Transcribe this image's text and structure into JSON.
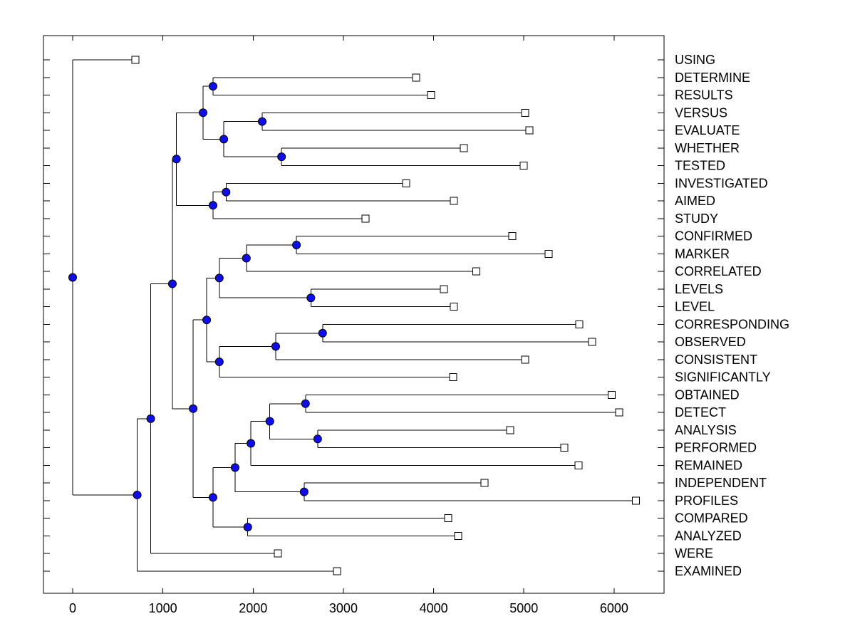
{
  "figure": {
    "background": "#ffffff"
  },
  "chart_data": {
    "type": "dendrogram",
    "orientation": "horizontal",
    "title": "",
    "xlabel": "",
    "ylabel": "",
    "grid": false,
    "x_axis": {
      "ticks": [
        0,
        1000,
        2000,
        3000,
        4000,
        5000,
        6000
      ],
      "tick_labels": [
        "0",
        "1000",
        "2000",
        "3000",
        "4000",
        "5000",
        "6000"
      ],
      "xlim": [
        -320,
        6560
      ]
    },
    "leaves": [
      {
        "label": "USING",
        "distance": 695
      },
      {
        "label": "DETERMINE",
        "distance": 3805
      },
      {
        "label": "RESULTS",
        "distance": 3970
      },
      {
        "label": "VERSUS",
        "distance": 5015
      },
      {
        "label": "EVALUATE",
        "distance": 5060
      },
      {
        "label": "WHETHER",
        "distance": 4335
      },
      {
        "label": "TESTED",
        "distance": 5000
      },
      {
        "label": "INVESTIGATED",
        "distance": 3695
      },
      {
        "label": "AIMED",
        "distance": 4225
      },
      {
        "label": "STUDY",
        "distance": 3245
      },
      {
        "label": "CONFIRMED",
        "distance": 4870
      },
      {
        "label": "MARKER",
        "distance": 5275
      },
      {
        "label": "CORRELATED",
        "distance": 4475
      },
      {
        "label": "LEVELS",
        "distance": 4115
      },
      {
        "label": "LEVEL",
        "distance": 4225
      },
      {
        "label": "CORRESPONDING",
        "distance": 5615
      },
      {
        "label": "OBSERVED",
        "distance": 5755
      },
      {
        "label": "CONSISTENT",
        "distance": 5015
      },
      {
        "label": "SIGNIFICANTLY",
        "distance": 4215
      },
      {
        "label": "OBTAINED",
        "distance": 5975
      },
      {
        "label": "DETECT",
        "distance": 6055
      },
      {
        "label": "ANALYSIS",
        "distance": 4850
      },
      {
        "label": "PERFORMED",
        "distance": 5450
      },
      {
        "label": "REMAINED",
        "distance": 5605
      },
      {
        "label": "INDEPENDENT",
        "distance": 4565
      },
      {
        "label": "PROFILES",
        "distance": 6240
      },
      {
        "label": "COMPARED",
        "distance": 4160
      },
      {
        "label": "ANALYZED",
        "distance": 4270
      },
      {
        "label": "WERE",
        "distance": 2275
      },
      {
        "label": "EXAMINED",
        "distance": 2930
      }
    ],
    "nodes": [
      {
        "id": "n1",
        "distance": 1555,
        "children": [
          "L1",
          "L2"
        ]
      },
      {
        "id": "n2",
        "distance": 2100,
        "children": [
          "L3",
          "L4"
        ]
      },
      {
        "id": "n5",
        "distance": 2315,
        "children": [
          "L5",
          "L6"
        ]
      },
      {
        "id": "n4",
        "distance": 1675,
        "children": [
          "n2",
          "n5"
        ]
      },
      {
        "id": "n3",
        "distance": 1445,
        "children": [
          "n1",
          "n4"
        ]
      },
      {
        "id": "n7",
        "distance": 1700,
        "children": [
          "L7",
          "L8"
        ]
      },
      {
        "id": "n8",
        "distance": 1555,
        "children": [
          "n7",
          "L9"
        ]
      },
      {
        "id": "n6",
        "distance": 1150,
        "children": [
          "n3",
          "n8"
        ]
      },
      {
        "id": "n10",
        "distance": 2480,
        "children": [
          "L10",
          "L11"
        ]
      },
      {
        "id": "n11",
        "distance": 1925,
        "children": [
          "n10",
          "L12"
        ]
      },
      {
        "id": "n12",
        "distance": 2640,
        "children": [
          "L13",
          "L14"
        ]
      },
      {
        "id": "n13",
        "distance": 1625,
        "children": [
          "n11",
          "n12"
        ]
      },
      {
        "id": "n15",
        "distance": 2770,
        "children": [
          "L15",
          "L16"
        ]
      },
      {
        "id": "n15b",
        "distance": 2250,
        "children": [
          "n15",
          "L17"
        ]
      },
      {
        "id": "n16",
        "distance": 1625,
        "children": [
          "n15b",
          "L18"
        ]
      },
      {
        "id": "n17",
        "distance": 1485,
        "children": [
          "n13",
          "n16"
        ]
      },
      {
        "id": "n20",
        "distance": 2580,
        "children": [
          "L19",
          "L20"
        ]
      },
      {
        "id": "n22",
        "distance": 2715,
        "children": [
          "L21",
          "L22"
        ]
      },
      {
        "id": "n21",
        "distance": 2185,
        "children": [
          "n20",
          "n22"
        ]
      },
      {
        "id": "n23",
        "distance": 1975,
        "children": [
          "n21",
          "L23"
        ]
      },
      {
        "id": "n25",
        "distance": 2565,
        "children": [
          "L24",
          "L25"
        ]
      },
      {
        "id": "n24",
        "distance": 1800,
        "children": [
          "n23",
          "n25"
        ]
      },
      {
        "id": "n27",
        "distance": 1940,
        "children": [
          "L26",
          "L27"
        ]
      },
      {
        "id": "n28",
        "distance": 1555,
        "children": [
          "n24",
          "n27"
        ]
      },
      {
        "id": "n18",
        "distance": 1335,
        "children": [
          "n17",
          "n28"
        ]
      },
      {
        "id": "n9",
        "distance": 1105,
        "children": [
          "n6",
          "n18"
        ]
      },
      {
        "id": "n19",
        "distance": 865,
        "children": [
          "n9",
          "L28"
        ]
      },
      {
        "id": "n26",
        "distance": 715,
        "children": [
          "n19",
          "L29"
        ]
      },
      {
        "id": "root",
        "distance": 0,
        "children": [
          "L0",
          "n26"
        ]
      }
    ],
    "root_id": "root",
    "styles": {
      "branch_color": "#000000",
      "internal_marker_fill": "#0d0df0",
      "marker_edge_color": "#000000",
      "leaf_marker_fill": "#ffffff",
      "axis_color": "#000000",
      "text_color": "#000000"
    }
  }
}
